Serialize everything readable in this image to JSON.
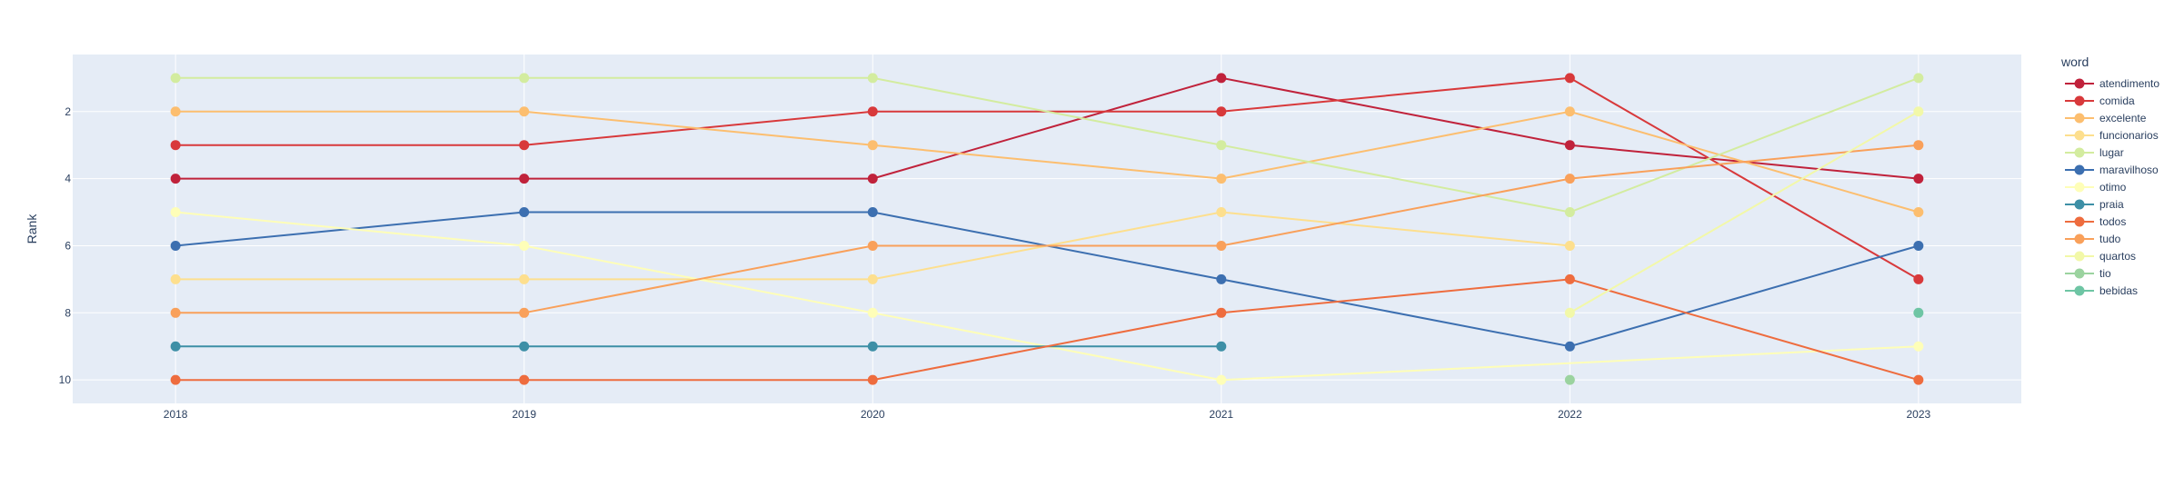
{
  "chart_data": {
    "type": "line",
    "xlabel": "",
    "ylabel": "Rank",
    "y_reversed": true,
    "ylim": [
      10.7,
      0.3
    ],
    "x": [
      2018,
      2019,
      2020,
      2021,
      2022,
      2023
    ],
    "x_tick_labels": [
      "2018",
      "2019",
      "2020",
      "2021",
      "2022",
      "2023"
    ],
    "y_ticks": [
      2,
      4,
      6,
      8,
      10
    ],
    "y_tick_labels": [
      "2",
      "4",
      "6",
      "8",
      "10"
    ],
    "grid": true,
    "plot_background": "#e5ecf6",
    "legend": {
      "title": "word",
      "placement": "right"
    },
    "series": [
      {
        "name": "atendimento",
        "color": "#c0223b",
        "points": [
          [
            2018,
            4
          ],
          [
            2019,
            4
          ],
          [
            2020,
            4
          ],
          [
            2021,
            1
          ],
          [
            2022,
            3
          ],
          [
            2023,
            4
          ]
        ]
      },
      {
        "name": "comida",
        "color": "#d8393b",
        "points": [
          [
            2018,
            3
          ],
          [
            2019,
            3
          ],
          [
            2020,
            2
          ],
          [
            2021,
            2
          ],
          [
            2022,
            1
          ],
          [
            2023,
            7
          ]
        ]
      },
      {
        "name": "excelente",
        "color": "#fcbe6f",
        "points": [
          [
            2018,
            2
          ],
          [
            2019,
            2
          ],
          [
            2020,
            3
          ],
          [
            2021,
            4
          ],
          [
            2022,
            2
          ],
          [
            2023,
            5
          ]
        ]
      },
      {
        "name": "funcionarios",
        "color": "#fddf8e",
        "points": [
          [
            2018,
            7
          ],
          [
            2019,
            7
          ],
          [
            2020,
            7
          ],
          [
            2021,
            5
          ],
          [
            2022,
            6
          ]
        ]
      },
      {
        "name": "lugar",
        "color": "#d3ec9f",
        "points": [
          [
            2018,
            1
          ],
          [
            2019,
            1
          ],
          [
            2020,
            1
          ],
          [
            2021,
            3
          ],
          [
            2022,
            5
          ],
          [
            2023,
            1
          ]
        ]
      },
      {
        "name": "maravilhoso",
        "color": "#3c6fb0",
        "points": [
          [
            2018,
            6
          ],
          [
            2019,
            5
          ],
          [
            2020,
            5
          ],
          [
            2021,
            7
          ],
          [
            2022,
            9
          ],
          [
            2023,
            6
          ]
        ]
      },
      {
        "name": "otimo",
        "color": "#fefeb8",
        "points": [
          [
            2018,
            5
          ],
          [
            2019,
            6
          ],
          [
            2020,
            8
          ],
          [
            2021,
            10
          ],
          [
            2023,
            9
          ]
        ]
      },
      {
        "name": "praia",
        "color": "#3d8fa6",
        "points": [
          [
            2018,
            9
          ],
          [
            2019,
            9
          ],
          [
            2020,
            9
          ],
          [
            2021,
            9
          ]
        ]
      },
      {
        "name": "todos",
        "color": "#ee6c3e",
        "points": [
          [
            2018,
            10
          ],
          [
            2019,
            10
          ],
          [
            2020,
            10
          ],
          [
            2021,
            8
          ],
          [
            2022,
            7
          ],
          [
            2023,
            10
          ]
        ]
      },
      {
        "name": "tudo",
        "color": "#f9a05a",
        "points": [
          [
            2018,
            8
          ],
          [
            2019,
            8
          ],
          [
            2020,
            6
          ],
          [
            2021,
            6
          ],
          [
            2022,
            4
          ],
          [
            2023,
            3
          ]
        ]
      },
      {
        "name": "quartos",
        "color": "#f2f8a8",
        "points": [
          [
            2022,
            8
          ],
          [
            2023,
            2
          ]
        ]
      },
      {
        "name": "tio",
        "color": "#9bd39f",
        "points": [
          [
            2022,
            10
          ]
        ]
      },
      {
        "name": "bebidas",
        "color": "#6ec5a4",
        "points": [
          [
            2023,
            8
          ]
        ]
      }
    ]
  }
}
